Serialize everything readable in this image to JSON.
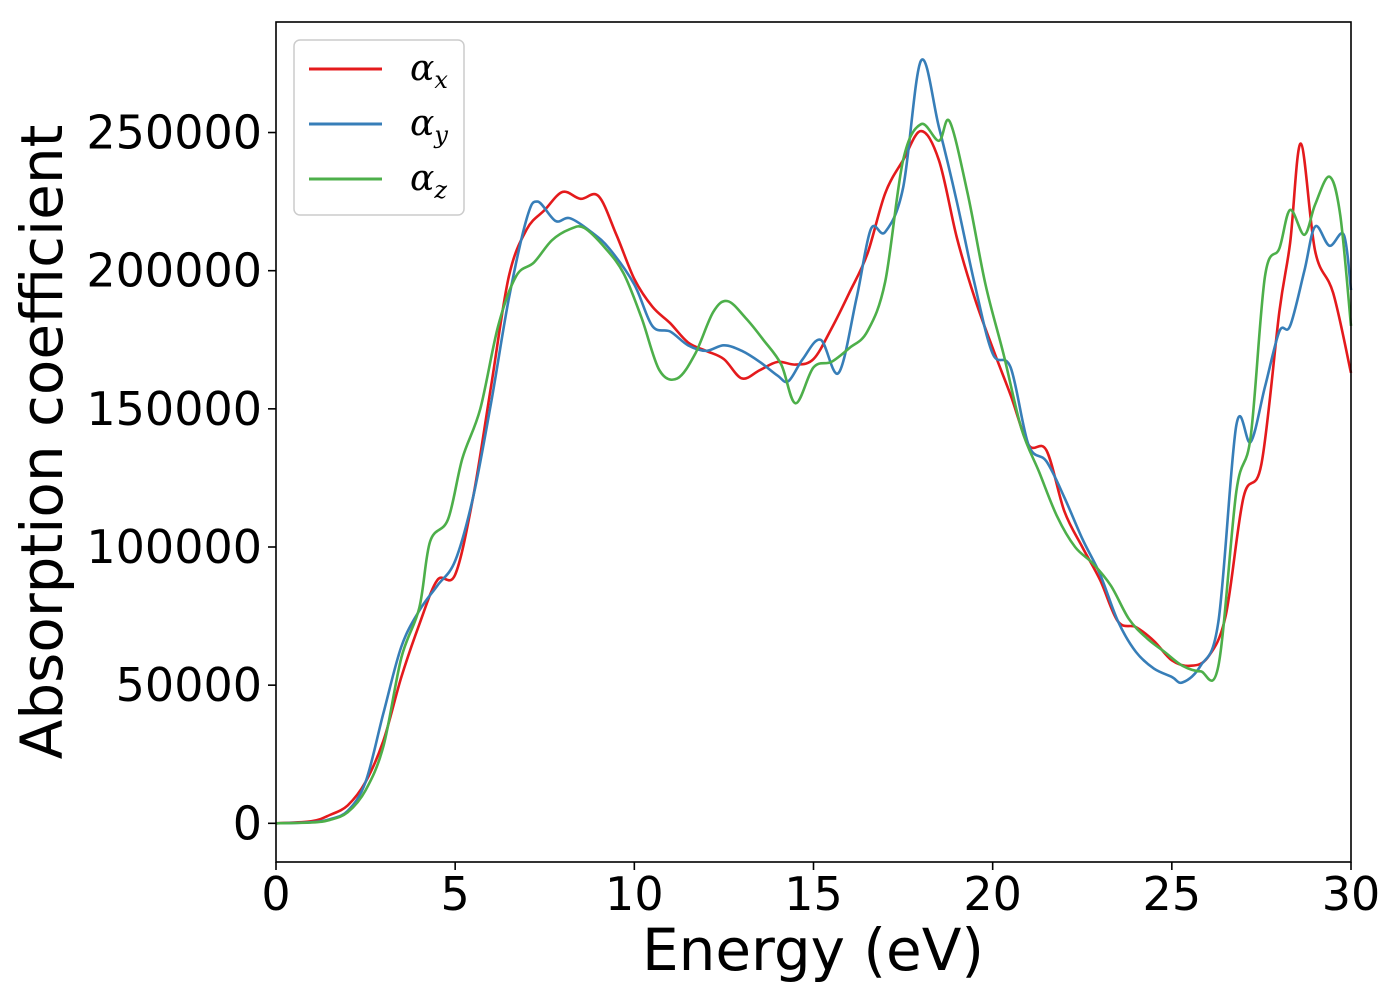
{
  "chart_data": {
    "type": "line",
    "title": "",
    "xlabel": "Energy (eV)",
    "ylabel": "Absorption coefficient",
    "xlim": [
      0,
      30
    ],
    "ylim": [
      -14000,
      290000
    ],
    "x_ticks": [
      "0",
      "5",
      "10",
      "15",
      "20",
      "25",
      "30"
    ],
    "y_ticks": [
      "0",
      "50000",
      "100000",
      "150000",
      "200000",
      "250000"
    ],
    "grid": false,
    "legend_position": "top-left",
    "series": [
      {
        "name": "αx",
        "symbol": "α",
        "subscript": "x",
        "color": "#e41a1c",
        "points": [
          [
            0,
            0
          ],
          [
            1,
            800
          ],
          [
            1.5,
            3000
          ],
          [
            2,
            6500
          ],
          [
            2.5,
            15000
          ],
          [
            3,
            30000
          ],
          [
            3.5,
            53000
          ],
          [
            4,
            72000
          ],
          [
            4.5,
            88000
          ],
          [
            5,
            90000
          ],
          [
            5.5,
            118000
          ],
          [
            6,
            158000
          ],
          [
            6.5,
            198000
          ],
          [
            7,
            215000
          ],
          [
            7.5,
            222000
          ],
          [
            8,
            228500
          ],
          [
            8.5,
            226000
          ],
          [
            9,
            227000
          ],
          [
            9.5,
            213000
          ],
          [
            10,
            197000
          ],
          [
            10.5,
            187000
          ],
          [
            11,
            181000
          ],
          [
            11.5,
            174000
          ],
          [
            12,
            171000
          ],
          [
            12.5,
            168000
          ],
          [
            13,
            161000
          ],
          [
            13.5,
            164000
          ],
          [
            14,
            167000
          ],
          [
            14.5,
            166000
          ],
          [
            15,
            168000
          ],
          [
            15.5,
            179000
          ],
          [
            16,
            192000
          ],
          [
            16.5,
            206000
          ],
          [
            17,
            228000
          ],
          [
            17.5,
            240000
          ],
          [
            18,
            250500
          ],
          [
            18.5,
            240000
          ],
          [
            19,
            212000
          ],
          [
            19.5,
            190000
          ],
          [
            20,
            172000
          ],
          [
            20.5,
            155000
          ],
          [
            21,
            137000
          ],
          [
            21.5,
            135000
          ],
          [
            22,
            113000
          ],
          [
            22.5,
            100000
          ],
          [
            23,
            88000
          ],
          [
            23.5,
            73000
          ],
          [
            24,
            71000
          ],
          [
            24.5,
            66000
          ],
          [
            25,
            59000
          ],
          [
            25.5,
            57000
          ],
          [
            26,
            60000
          ],
          [
            26.5,
            75000
          ],
          [
            27,
            118000
          ],
          [
            27.5,
            130000
          ],
          [
            28,
            185000
          ],
          [
            28.3,
            210000
          ],
          [
            28.6,
            246000
          ],
          [
            29,
            207000
          ],
          [
            29.5,
            192000
          ],
          [
            30,
            163000
          ]
        ]
      },
      {
        "name": "αy",
        "symbol": "α",
        "subscript": "y",
        "color": "#377eb8",
        "points": [
          [
            0,
            0
          ],
          [
            1,
            400
          ],
          [
            1.5,
            1500
          ],
          [
            2,
            4500
          ],
          [
            2.5,
            15000
          ],
          [
            3,
            40000
          ],
          [
            3.5,
            64000
          ],
          [
            4,
            77000
          ],
          [
            4.5,
            86000
          ],
          [
            5,
            95000
          ],
          [
            5.5,
            118000
          ],
          [
            6,
            152000
          ],
          [
            6.5,
            190000
          ],
          [
            7,
            219000
          ],
          [
            7.3,
            225000
          ],
          [
            7.8,
            218000
          ],
          [
            8.2,
            219000
          ],
          [
            8.8,
            214000
          ],
          [
            9.3,
            208000
          ],
          [
            10,
            195000
          ],
          [
            10.5,
            180000
          ],
          [
            11,
            178000
          ],
          [
            11.5,
            173000
          ],
          [
            12,
            171000
          ],
          [
            12.5,
            173000
          ],
          [
            13,
            171000
          ],
          [
            13.5,
            167000
          ],
          [
            14,
            162000
          ],
          [
            14.3,
            160000
          ],
          [
            14.7,
            168000
          ],
          [
            15.2,
            175000
          ],
          [
            15.7,
            163000
          ],
          [
            16.2,
            190000
          ],
          [
            16.6,
            215000
          ],
          [
            17,
            214000
          ],
          [
            17.5,
            230000
          ],
          [
            18,
            276000
          ],
          [
            18.5,
            252000
          ],
          [
            19,
            225000
          ],
          [
            19.5,
            195000
          ],
          [
            20,
            170000
          ],
          [
            20.5,
            165000
          ],
          [
            21,
            137000
          ],
          [
            21.5,
            131000
          ],
          [
            22,
            118000
          ],
          [
            22.5,
            103000
          ],
          [
            23,
            90000
          ],
          [
            23.5,
            73000
          ],
          [
            24,
            62000
          ],
          [
            24.5,
            56000
          ],
          [
            25,
            53000
          ],
          [
            25.3,
            51000
          ],
          [
            25.8,
            57000
          ],
          [
            26.3,
            73000
          ],
          [
            26.8,
            144000
          ],
          [
            27.2,
            138000
          ],
          [
            27.6,
            158000
          ],
          [
            28,
            178000
          ],
          [
            28.3,
            180000
          ],
          [
            28.7,
            200000
          ],
          [
            29,
            216000
          ],
          [
            29.4,
            209000
          ],
          [
            29.8,
            213000
          ],
          [
            30,
            193000
          ]
        ]
      },
      {
        "name": "αz",
        "symbol": "α",
        "subscript": "z",
        "color": "#4daf4a",
        "points": [
          [
            0,
            0
          ],
          [
            1,
            300
          ],
          [
            1.5,
            1200
          ],
          [
            2,
            4000
          ],
          [
            2.5,
            12000
          ],
          [
            3,
            28000
          ],
          [
            3.5,
            60000
          ],
          [
            4,
            78000
          ],
          [
            4.3,
            102000
          ],
          [
            4.8,
            110000
          ],
          [
            5.2,
            132000
          ],
          [
            5.7,
            150000
          ],
          [
            6.2,
            180000
          ],
          [
            6.7,
            198000
          ],
          [
            7.2,
            203000
          ],
          [
            7.7,
            211000
          ],
          [
            8.2,
            215000
          ],
          [
            8.6,
            215500
          ],
          [
            9.2,
            208000
          ],
          [
            9.7,
            199000
          ],
          [
            10.2,
            183000
          ],
          [
            10.7,
            164000
          ],
          [
            11.2,
            161000
          ],
          [
            11.7,
            170000
          ],
          [
            12.2,
            185000
          ],
          [
            12.6,
            189000
          ],
          [
            13.1,
            183000
          ],
          [
            13.6,
            175000
          ],
          [
            14.1,
            166000
          ],
          [
            14.5,
            152000
          ],
          [
            15,
            165000
          ],
          [
            15.5,
            167000
          ],
          [
            16,
            172000
          ],
          [
            16.5,
            178000
          ],
          [
            17,
            196000
          ],
          [
            17.5,
            240000
          ],
          [
            18,
            253000
          ],
          [
            18.5,
            247000
          ],
          [
            18.8,
            254000
          ],
          [
            19.3,
            228000
          ],
          [
            19.8,
            195000
          ],
          [
            20.3,
            170000
          ],
          [
            20.8,
            143000
          ],
          [
            21.3,
            127000
          ],
          [
            21.8,
            111000
          ],
          [
            22.3,
            100000
          ],
          [
            22.8,
            94000
          ],
          [
            23.3,
            86000
          ],
          [
            23.8,
            74000
          ],
          [
            24.3,
            67000
          ],
          [
            24.8,
            62000
          ],
          [
            25.3,
            57000
          ],
          [
            25.8,
            55000
          ],
          [
            26.3,
            57000
          ],
          [
            26.8,
            120000
          ],
          [
            27.2,
            140000
          ],
          [
            27.6,
            198000
          ],
          [
            28,
            208000
          ],
          [
            28.3,
            222000
          ],
          [
            28.7,
            213000
          ],
          [
            29,
            224000
          ],
          [
            29.4,
            234000
          ],
          [
            29.7,
            220000
          ],
          [
            30,
            180000
          ]
        ]
      }
    ]
  }
}
